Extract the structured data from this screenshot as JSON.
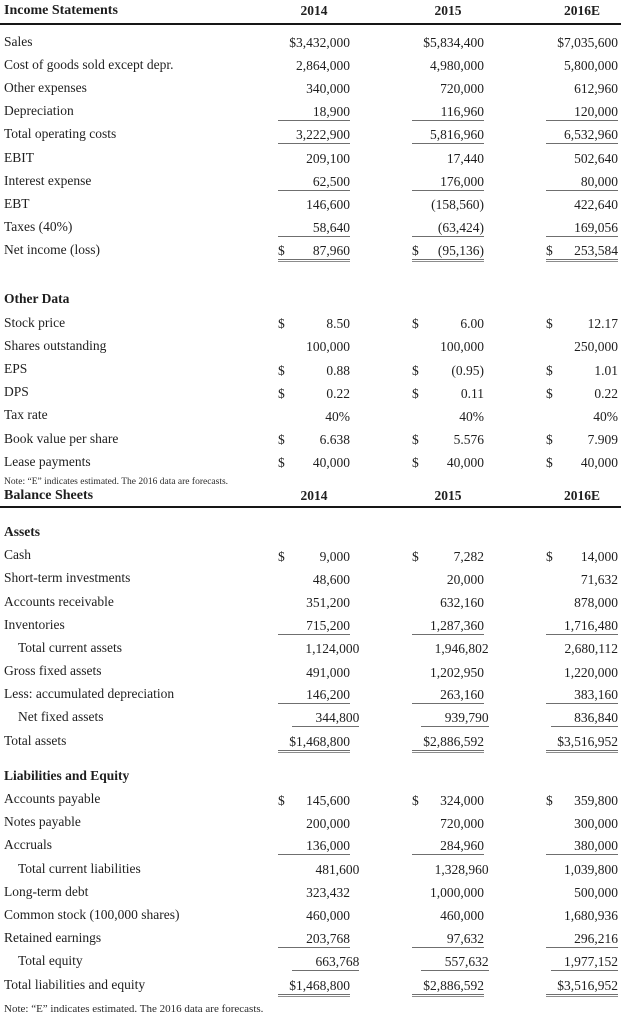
{
  "page": {
    "background": "#ffffff",
    "text_color": "#1e1e1e",
    "rule_color": "#161616",
    "underline_color": "#6f6f6f"
  },
  "tables": [
    {
      "title": "Income Statements",
      "columns": [
        "2014",
        "2015",
        "2016E"
      ],
      "note": "Note: “E” indicates estimated. The 2016 data are forecasts.",
      "sections": [
        {
          "header": "",
          "rows": [
            {
              "label": "Sales",
              "values": [
                "$3,432,000",
                "$5,834,400",
                "$7,035,600"
              ],
              "u": 0
            },
            {
              "label": "Cost of goods sold except depr.",
              "values": [
                "2,864,000",
                "4,980,000",
                "5,800,000"
              ],
              "u": 0
            },
            {
              "label": "Other expenses",
              "values": [
                "340,000",
                "720,000",
                "612,960"
              ],
              "u": 0
            },
            {
              "label": "Depreciation",
              "values": [
                "18,900",
                "116,960",
                "120,000"
              ],
              "u": 1
            },
            {
              "label": "Total operating costs",
              "values": [
                "3,222,900",
                "5,816,960",
                "6,532,960"
              ],
              "u": 1
            },
            {
              "label": "EBIT",
              "values": [
                "209,100",
                "17,440",
                "502,640"
              ],
              "u": 0
            },
            {
              "label": "Interest expense",
              "values": [
                "62,500",
                "176,000",
                "80,000"
              ],
              "u": 1
            },
            {
              "label": "EBT",
              "values": [
                "146,600",
                "(158,560)",
                "422,640"
              ],
              "u": 0
            },
            {
              "label": "Taxes (40%)",
              "values": [
                "58,640",
                "(63,424)",
                "169,056"
              ],
              "u": 1
            },
            {
              "label": "Net income (loss)",
              "dollar": "$",
              "values": [
                "87,960",
                "(95,136)",
                "253,584"
              ],
              "u": 2
            }
          ]
        },
        {
          "header": "Other Data",
          "rows": [
            {
              "label": "Stock price",
              "dollar": "$",
              "values": [
                "8.50",
                "6.00",
                "12.17"
              ],
              "u": 0
            },
            {
              "label": "Shares outstanding",
              "values": [
                "100,000",
                "100,000",
                "250,000"
              ],
              "u": 0
            },
            {
              "label": "EPS",
              "dollar": "$",
              "values": [
                "0.88",
                "(0.95)",
                "1.01"
              ],
              "u": 0
            },
            {
              "label": "DPS",
              "dollar": "$",
              "values": [
                "0.22",
                "0.11",
                "0.22"
              ],
              "u": 0
            },
            {
              "label": "Tax rate",
              "values": [
                "40%",
                "40%",
                "40%"
              ],
              "u": 0
            },
            {
              "label": "Book value per share",
              "dollar": "$",
              "values": [
                "6.638",
                "5.576",
                "7.909"
              ],
              "u": 0
            },
            {
              "label": "Lease payments",
              "dollar": "$",
              "values": [
                "40,000",
                "40,000",
                "40,000"
              ],
              "u": 0
            }
          ]
        }
      ]
    },
    {
      "title": "Balance Sheets",
      "columns": [
        "2014",
        "2015",
        "2016E"
      ],
      "note": "Note: “E” indicates estimated. The 2016 data are forecasts.",
      "sections": [
        {
          "header": "Assets",
          "rows": [
            {
              "label": "Cash",
              "dollar": "$",
              "values": [
                "9,000",
                "7,282",
                "14,000"
              ],
              "u": 0
            },
            {
              "label": "Short-term investments",
              "values": [
                "48,600",
                "20,000",
                "71,632"
              ],
              "u": 0
            },
            {
              "label": "Accounts receivable",
              "values": [
                "351,200",
                "632,160",
                "878,000"
              ],
              "u": 0
            },
            {
              "label": "Inventories",
              "values": [
                "715,200",
                "1,287,360",
                "1,716,480"
              ],
              "u": 1
            },
            {
              "label": "Total current assets",
              "indent": true,
              "values": [
                "1,124,000",
                "1,946,802",
                "2,680,112"
              ],
              "u": 0
            },
            {
              "label": "Gross fixed assets",
              "values": [
                "491,000",
                "1,202,950",
                "1,220,000"
              ],
              "u": 0
            },
            {
              "label": "Less: accumulated depreciation",
              "values": [
                "146,200",
                "263,160",
                "383,160"
              ],
              "u": 1
            },
            {
              "label": "Net fixed assets",
              "indent": true,
              "values": [
                "344,800",
                "939,790",
                "836,840"
              ],
              "u": 1
            },
            {
              "label": "Total assets",
              "values": [
                "$1,468,800",
                "$2,886,592",
                "$3,516,952"
              ],
              "u": 2
            }
          ]
        },
        {
          "header": "Liabilities and Equity",
          "rows": [
            {
              "label": "Accounts payable",
              "dollar": "$",
              "values": [
                "145,600",
                "324,000",
                "359,800"
              ],
              "u": 0
            },
            {
              "label": "Notes payable",
              "values": [
                "200,000",
                "720,000",
                "300,000"
              ],
              "u": 0
            },
            {
              "label": "Accruals",
              "values": [
                "136,000",
                "284,960",
                "380,000"
              ],
              "u": 1
            },
            {
              "label": "Total current liabilities",
              "indent": true,
              "values": [
                "481,600",
                "1,328,960",
                "1,039,800"
              ],
              "u": 0
            },
            {
              "label": "Long-term debt",
              "values": [
                "323,432",
                "1,000,000",
                "500,000"
              ],
              "u": 0
            },
            {
              "label": "Common stock (100,000 shares)",
              "values": [
                "460,000",
                "460,000",
                "1,680,936"
              ],
              "u": 0
            },
            {
              "label": "Retained earnings",
              "values": [
                "203,768",
                "97,632",
                "296,216"
              ],
              "u": 1
            },
            {
              "label": "Total equity",
              "indent": true,
              "values": [
                "663,768",
                "557,632",
                "1,977,152"
              ],
              "u": 1
            },
            {
              "label": "Total liabilities and equity",
              "values": [
                "$1,468,800",
                "$2,886,592",
                "$3,516,952"
              ],
              "u": 2
            }
          ]
        }
      ]
    }
  ]
}
